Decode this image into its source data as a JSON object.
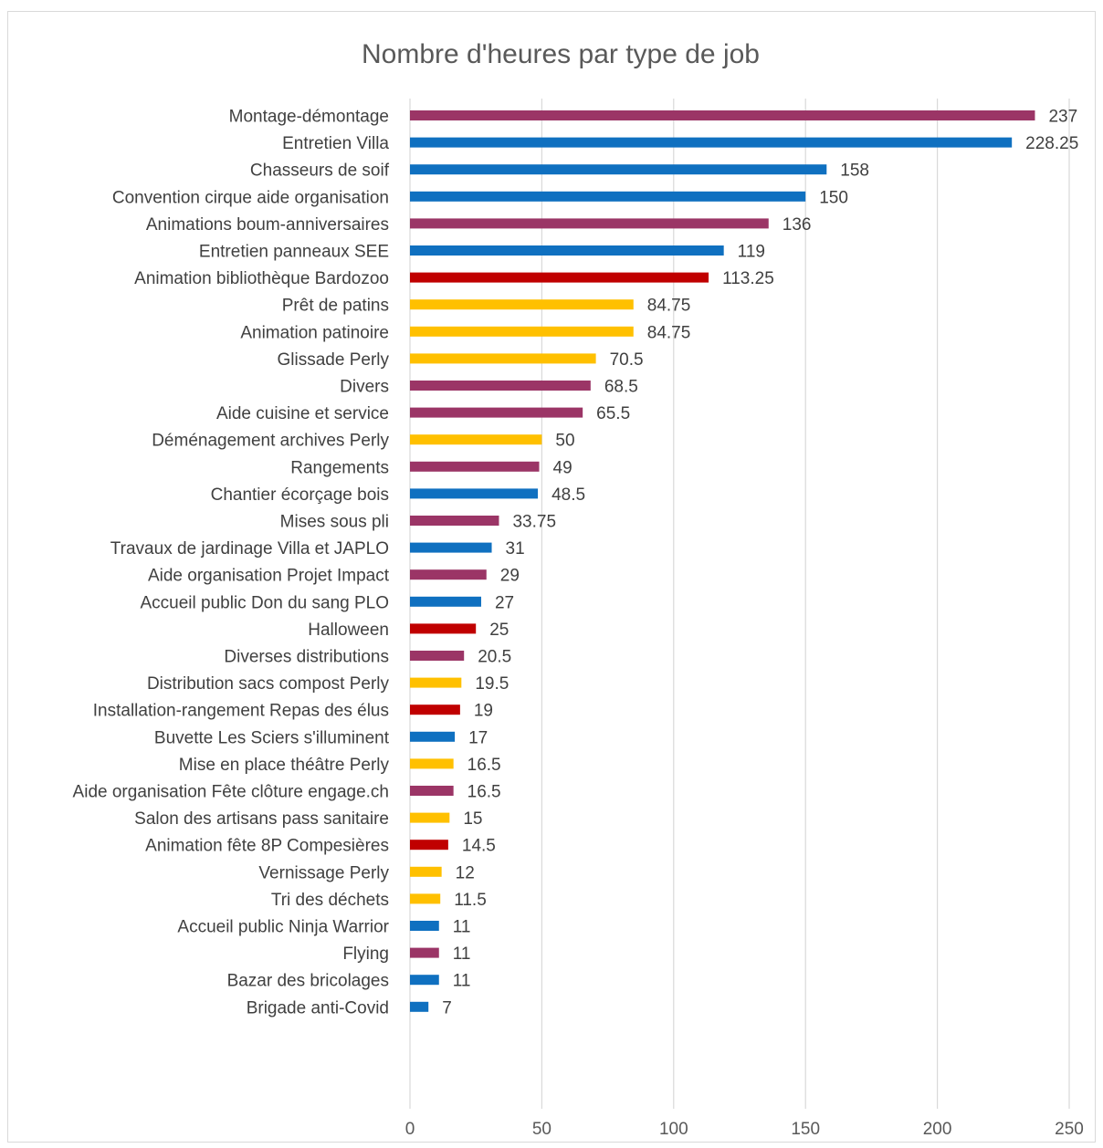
{
  "chart_data": {
    "type": "bar",
    "orientation": "horizontal",
    "title": "Nombre d'heures par type de job",
    "xlabel": "",
    "ylabel": "",
    "xlim": [
      0,
      250
    ],
    "x_ticks": [
      0,
      50,
      100,
      150,
      200,
      250
    ],
    "grid": "vertical",
    "legend": "none",
    "colors": {
      "purple": "#9b3566",
      "blue": "#0f70c0",
      "red": "#c00000",
      "yellow": "#ffc000"
    },
    "bars": [
      {
        "category": "Montage-démontage",
        "value": 237,
        "label": "237",
        "color": "purple"
      },
      {
        "category": "Entretien Villa",
        "value": 228.25,
        "label": "228.25",
        "color": "blue"
      },
      {
        "category": "Chasseurs de soif",
        "value": 158,
        "label": "158",
        "color": "blue"
      },
      {
        "category": "Convention cirque aide organisation",
        "value": 150,
        "label": "150",
        "color": "blue"
      },
      {
        "category": "Animations boum-anniversaires",
        "value": 136,
        "label": "136",
        "color": "purple"
      },
      {
        "category": "Entretien panneaux SEE",
        "value": 119,
        "label": "119",
        "color": "blue"
      },
      {
        "category": "Animation bibliothèque Bardozoo",
        "value": 113.25,
        "label": "113.25",
        "color": "red"
      },
      {
        "category": "Prêt de patins",
        "value": 84.75,
        "label": "84.75",
        "color": "yellow"
      },
      {
        "category": "Animation patinoire",
        "value": 84.75,
        "label": "84.75",
        "color": "yellow"
      },
      {
        "category": "Glissade Perly",
        "value": 70.5,
        "label": "70.5",
        "color": "yellow"
      },
      {
        "category": "Divers",
        "value": 68.5,
        "label": "68.5",
        "color": "purple"
      },
      {
        "category": "Aide cuisine et service",
        "value": 65.5,
        "label": "65.5",
        "color": "purple"
      },
      {
        "category": "Déménagement archives Perly",
        "value": 50,
        "label": "50",
        "color": "yellow"
      },
      {
        "category": "Rangements",
        "value": 49,
        "label": "49",
        "color": "purple"
      },
      {
        "category": "Chantier écorçage bois",
        "value": 48.5,
        "label": "48.5",
        "color": "blue"
      },
      {
        "category": "Mises sous pli",
        "value": 33.75,
        "label": "33.75",
        "color": "purple"
      },
      {
        "category": "Travaux de jardinage Villa et JAPLO",
        "value": 31,
        "label": "31",
        "color": "blue"
      },
      {
        "category": "Aide organisation Projet Impact",
        "value": 29,
        "label": "29",
        "color": "purple"
      },
      {
        "category": "Accueil public Don du sang PLO",
        "value": 27,
        "label": "27",
        "color": "blue"
      },
      {
        "category": "Halloween",
        "value": 25,
        "label": "25",
        "color": "red"
      },
      {
        "category": "Diverses distributions",
        "value": 20.5,
        "label": "20.5",
        "color": "purple"
      },
      {
        "category": "Distribution sacs compost Perly",
        "value": 19.5,
        "label": "19.5",
        "color": "yellow"
      },
      {
        "category": "Installation-rangement Repas des élus",
        "value": 19,
        "label": "19",
        "color": "red"
      },
      {
        "category": "Buvette Les Sciers s'illuminent",
        "value": 17,
        "label": "17",
        "color": "blue"
      },
      {
        "category": "Mise en place théâtre Perly",
        "value": 16.5,
        "label": "16.5",
        "color": "yellow"
      },
      {
        "category": "Aide organisation Fête clôture engage.ch",
        "value": 16.5,
        "label": "16.5",
        "color": "purple"
      },
      {
        "category": "Salon des artisans pass sanitaire",
        "value": 15,
        "label": "15",
        "color": "yellow"
      },
      {
        "category": "Animation fête 8P Compesières",
        "value": 14.5,
        "label": "14.5",
        "color": "red"
      },
      {
        "category": "Vernissage Perly",
        "value": 12,
        "label": "12",
        "color": "yellow"
      },
      {
        "category": "Tri des déchets",
        "value": 11.5,
        "label": "11.5",
        "color": "yellow"
      },
      {
        "category": "Accueil public Ninja Warrior",
        "value": 11,
        "label": "11",
        "color": "blue"
      },
      {
        "category": "Flying",
        "value": 11,
        "label": "11",
        "color": "purple"
      },
      {
        "category": "Bazar des bricolages",
        "value": 11,
        "label": "11",
        "color": "blue"
      },
      {
        "category": "Brigade anti-Covid",
        "value": 7,
        "label": "7",
        "color": "blue"
      }
    ]
  }
}
